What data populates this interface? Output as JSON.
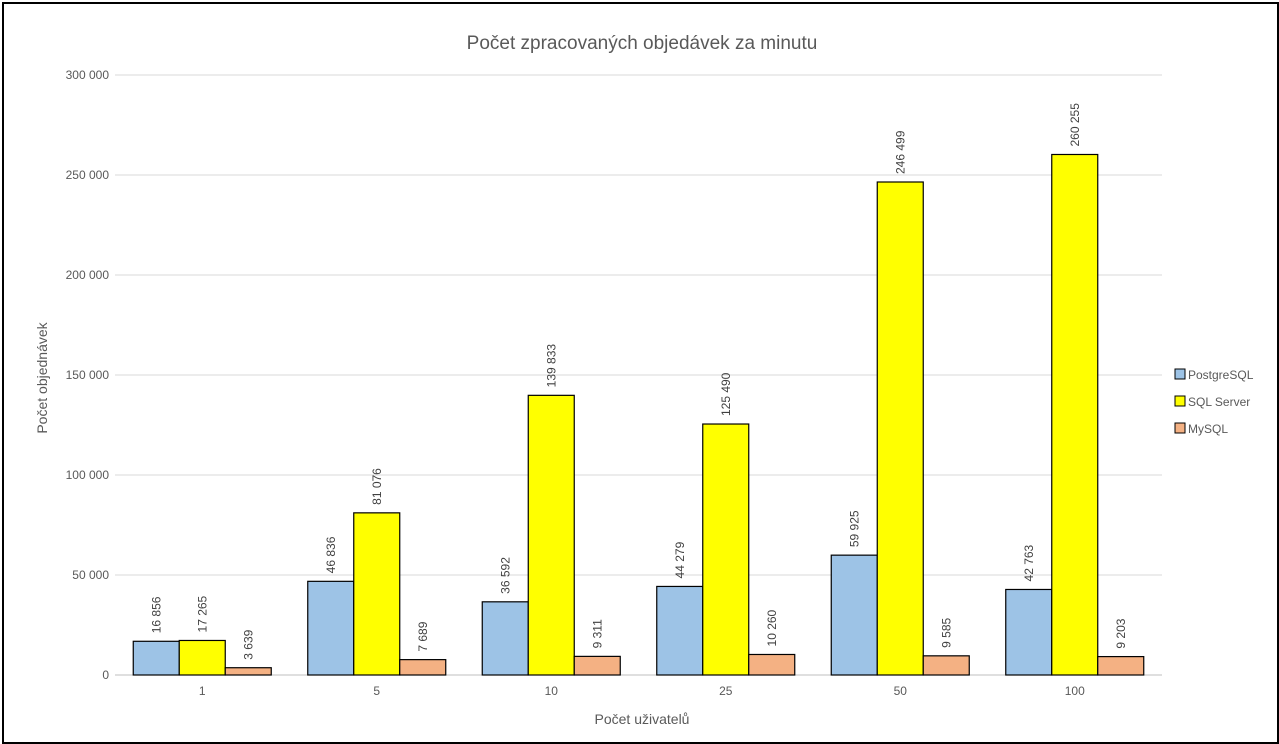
{
  "chart_data": {
    "type": "bar",
    "title": "Počet zpracovaných objedávek za minutu",
    "xlabel": "Počet uživatelů",
    "ylabel": "Počet objednávek",
    "categories": [
      "1",
      "5",
      "10",
      "25",
      "50",
      "100"
    ],
    "series": [
      {
        "name": "PostgreSQL",
        "color": "#9dc3e6",
        "values": [
          16856,
          46836,
          36592,
          44279,
          59925,
          42763
        ],
        "labels": [
          "16 856",
          "46 836",
          "36 592",
          "44 279",
          "59 925",
          "42 763"
        ]
      },
      {
        "name": "SQL Server",
        "color": "#ffff00",
        "values": [
          17265,
          81076,
          139833,
          125490,
          246499,
          260255
        ],
        "labels": [
          "17 265",
          "81 076",
          "139 833",
          "125 490",
          "246 499",
          "260 255"
        ]
      },
      {
        "name": "MySQL",
        "color": "#f4b183",
        "values": [
          3639,
          7689,
          9311,
          10260,
          9585,
          9203
        ],
        "labels": [
          "3 639",
          "7 689",
          "9 311",
          "10 260",
          "9 585",
          "9 203"
        ]
      }
    ],
    "ylim": [
      0,
      300000
    ],
    "yticks": [
      0,
      50000,
      100000,
      150000,
      200000,
      250000,
      300000
    ],
    "ytick_labels": [
      "0",
      "50 000",
      "100 000",
      "150 000",
      "200 000",
      "250 000",
      "300 000"
    ],
    "grid": true,
    "legend": "right"
  }
}
